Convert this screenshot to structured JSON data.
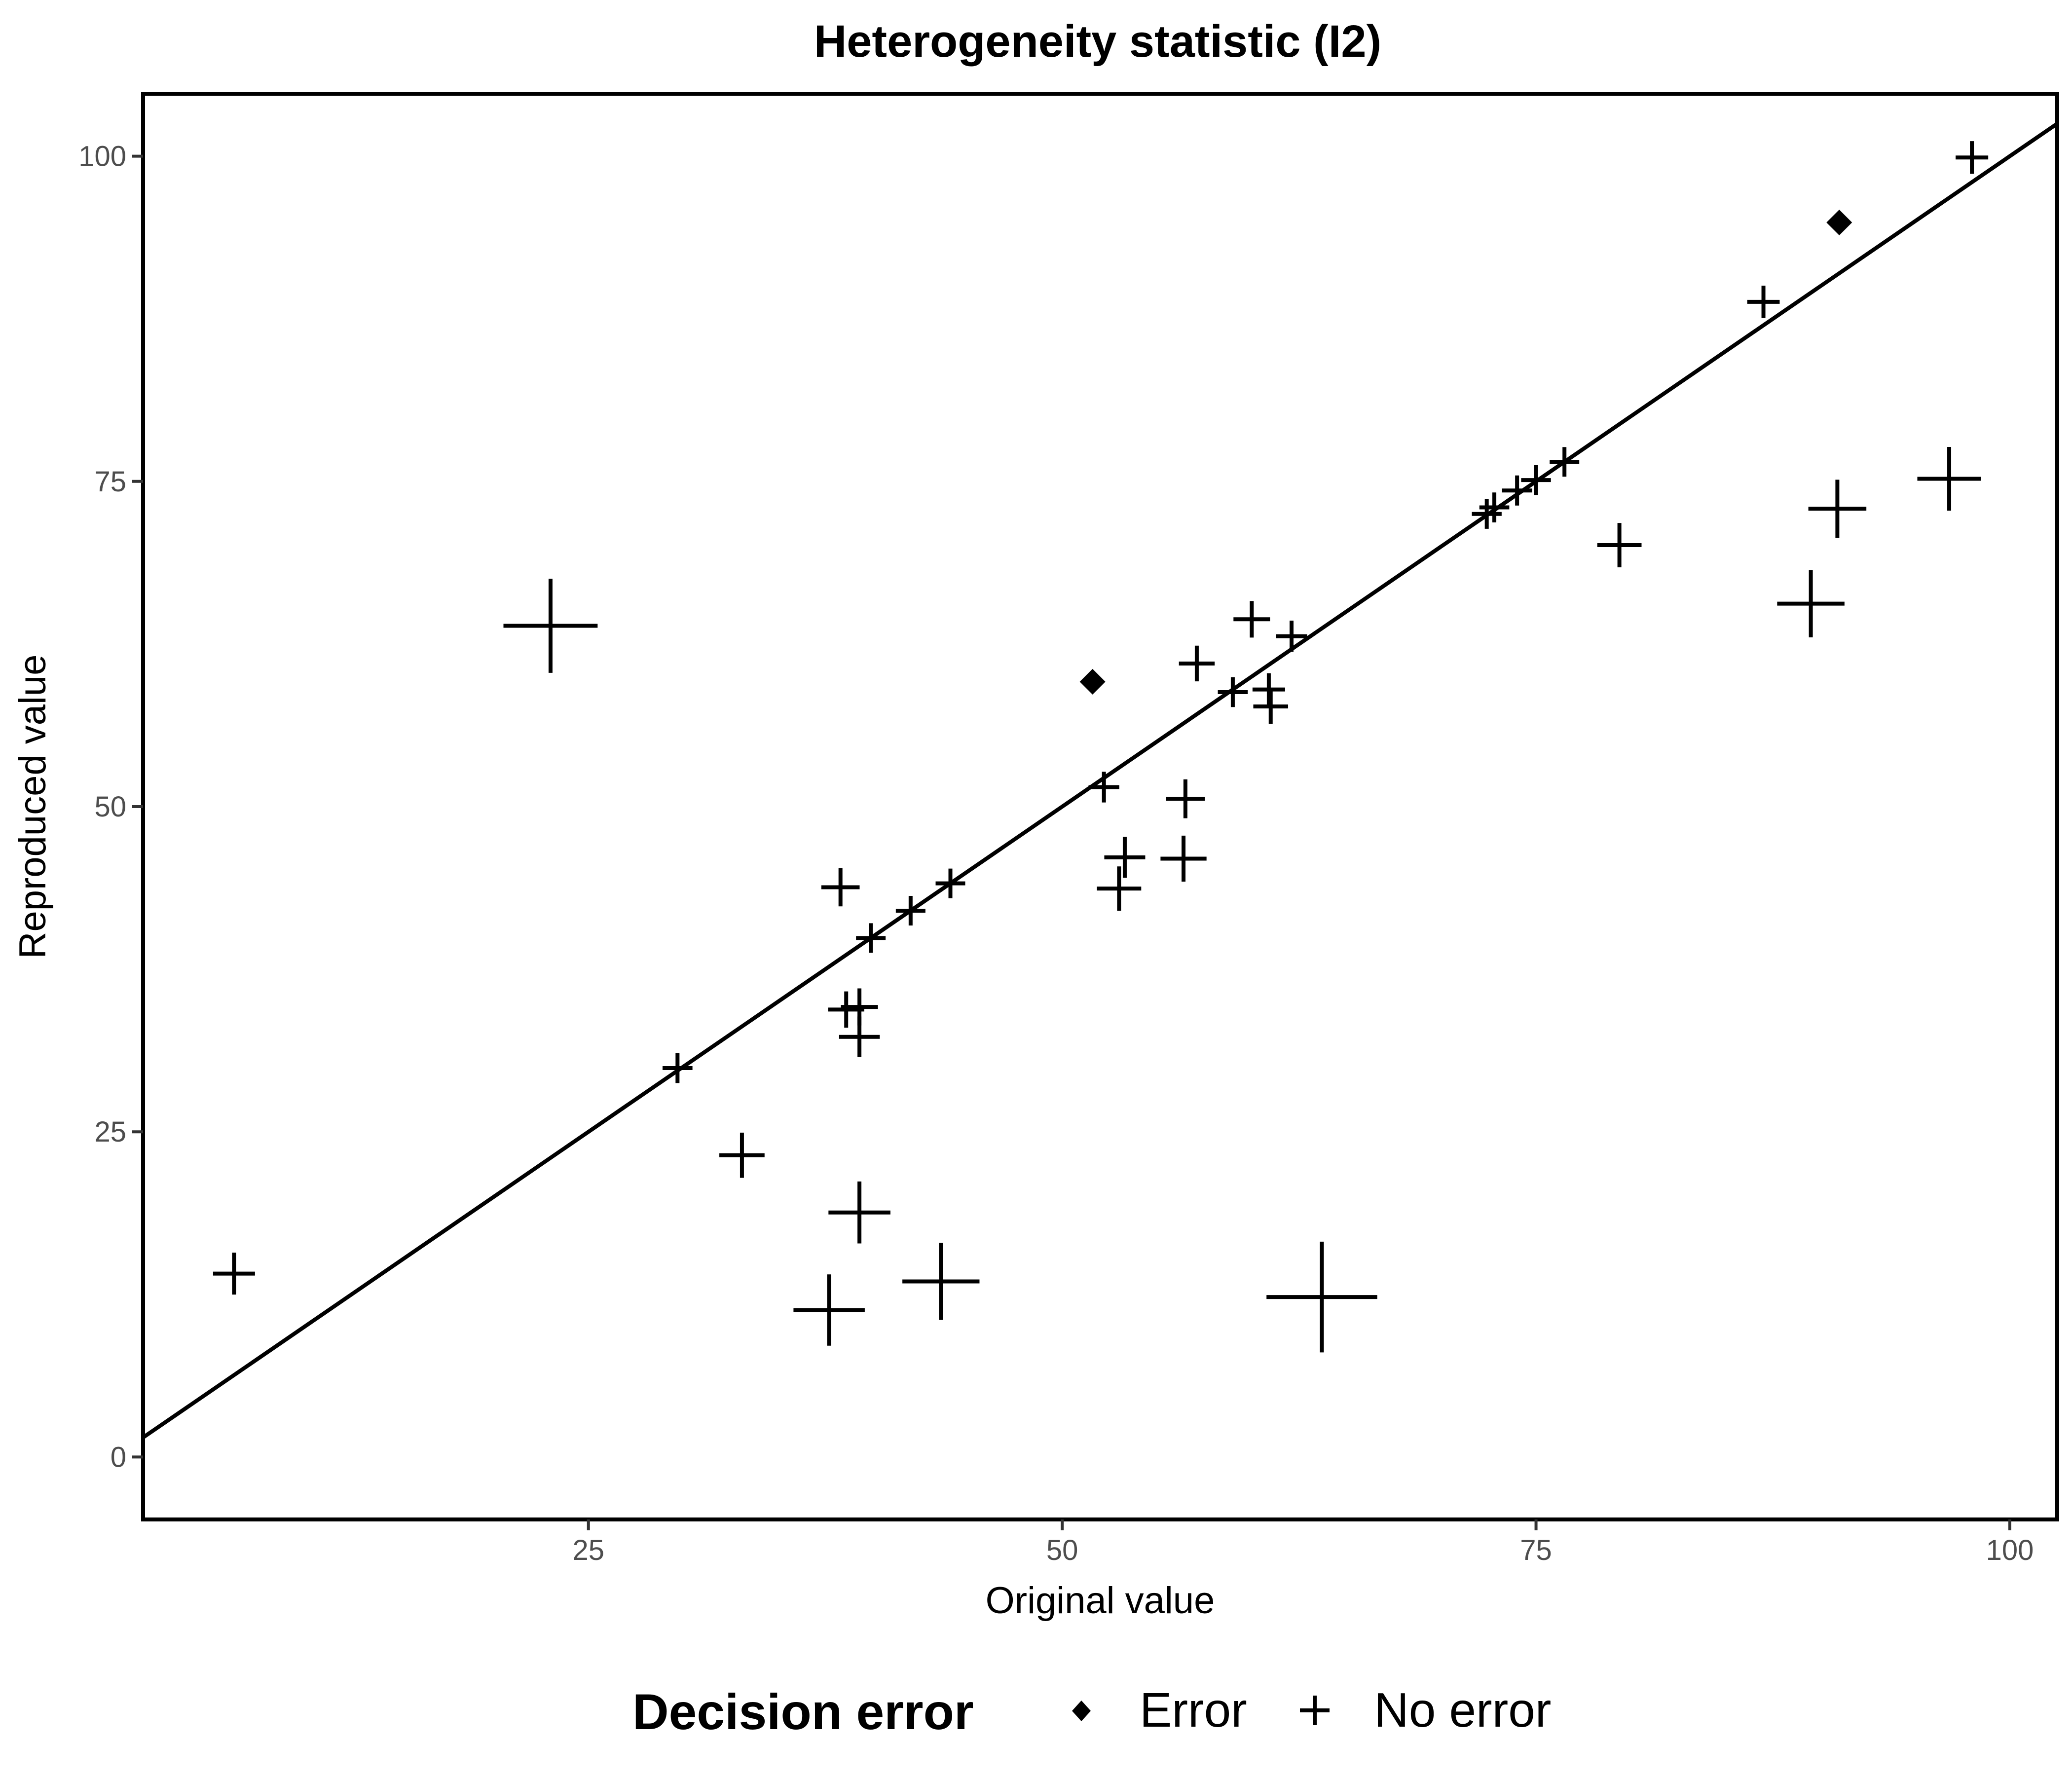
{
  "chart_data": {
    "type": "scatter",
    "title": "Heterogeneity statistic (I2)",
    "xlabel": "Original value",
    "ylabel": "Reproduced value",
    "xlim": [
      1.5,
      102.5
    ],
    "ylim": [
      -4.8,
      104.8
    ],
    "x_ticks": [
      25,
      50,
      75,
      100
    ],
    "y_ticks": [
      0,
      25,
      50,
      75,
      100
    ],
    "grid": false,
    "reference_line": {
      "type": "y=x"
    },
    "legend": {
      "title": "Decision error",
      "position": "bottom",
      "entries": [
        {
          "label": "Error",
          "shape": "diamond"
        },
        {
          "label": "No error",
          "shape": "plus"
        }
      ]
    },
    "point_size": "proportional to |reproduced - original|",
    "series": [
      {
        "name": "Error",
        "shape": "diamond",
        "points": [
          [
            51.6,
            59.6
          ],
          [
            91.0,
            94.9
          ]
        ]
      },
      {
        "name": "No error",
        "shape": "plus",
        "points": [
          [
            6.3,
            14.1
          ],
          [
            23.0,
            63.9
          ],
          [
            29.7,
            29.9
          ],
          [
            33.1,
            23.2
          ],
          [
            37.7,
            11.3
          ],
          [
            38.3,
            43.8
          ],
          [
            38.6,
            34.4
          ],
          [
            39.3,
            32.3
          ],
          [
            39.3,
            34.6
          ],
          [
            39.3,
            18.8
          ],
          [
            39.9,
            39.9
          ],
          [
            42.0,
            42.0
          ],
          [
            43.6,
            13.5
          ],
          [
            44.1,
            44.1
          ],
          [
            52.2,
            51.5
          ],
          [
            53.0,
            43.7
          ],
          [
            53.3,
            46.1
          ],
          [
            56.4,
            46.0
          ],
          [
            56.5,
            50.6
          ],
          [
            57.1,
            61.0
          ],
          [
            59.0,
            58.8
          ],
          [
            60.0,
            64.4
          ],
          [
            60.9,
            59.0
          ],
          [
            61.0,
            57.7
          ],
          [
            62.1,
            63.1
          ],
          [
            63.7,
            12.3
          ],
          [
            72.4,
            72.5
          ],
          [
            72.8,
            73.0
          ],
          [
            74.0,
            74.3
          ],
          [
            75.0,
            75.1
          ],
          [
            76.5,
            76.5
          ],
          [
            79.4,
            70.1
          ],
          [
            87.0,
            88.8
          ],
          [
            89.5,
            65.6
          ],
          [
            90.9,
            72.9
          ],
          [
            96.8,
            75.2
          ],
          [
            98.0,
            99.9
          ]
        ]
      }
    ]
  }
}
